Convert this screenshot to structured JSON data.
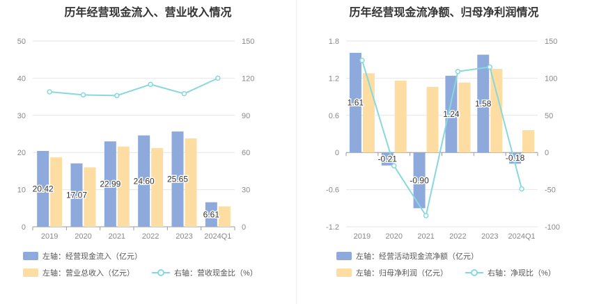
{
  "colors": {
    "blue": "#8eaadc",
    "orange": "#fedda3",
    "cyan": "#87d8dd",
    "grid": "#e6e6e6",
    "axis": "#999999",
    "tick": "#888888"
  },
  "chart_data": [
    {
      "type": "bar",
      "title": "历年经营现金流入、营业收入情况",
      "categories": [
        "2019",
        "2020",
        "2021",
        "2022",
        "2023",
        "2024Q1"
      ],
      "left_axis": {
        "ylim": [
          0,
          50
        ],
        "ticks": [
          "0",
          "10",
          "20",
          "30",
          "40",
          "50"
        ]
      },
      "right_axis": {
        "ylim": [
          0,
          150
        ],
        "ticks": [
          "0",
          "30",
          "60",
          "90",
          "120",
          "150"
        ]
      },
      "series": [
        {
          "name": "左轴：经营现金流入（亿元）",
          "type": "bar",
          "axis": "left",
          "values": [
            20.42,
            17.07,
            22.99,
            24.6,
            25.65,
            6.61
          ],
          "labels": [
            "20.42",
            "17.07",
            "22.99",
            "24.60",
            "25.65",
            "6.61"
          ]
        },
        {
          "name": "左轴：营业总收入（亿元）",
          "type": "bar",
          "axis": "left",
          "values": [
            18.7,
            16.0,
            21.6,
            21.2,
            23.8,
            5.5
          ]
        },
        {
          "name": "右轴：营收现金比（%）",
          "type": "line",
          "axis": "right",
          "values": [
            109,
            106.5,
            106,
            115,
            107.5,
            120
          ]
        }
      ]
    },
    {
      "type": "bar",
      "title": "历年经营现金流净额、归母净利润情况",
      "categories": [
        "2019",
        "2020",
        "2021",
        "2022",
        "2023",
        "2024Q1"
      ],
      "left_axis": {
        "ylim": [
          -1.2,
          1.8
        ],
        "ticks": [
          "-1.2",
          "-0.6",
          "0",
          "0.6",
          "1.2",
          "1.8"
        ]
      },
      "right_axis": {
        "ylim": [
          -100,
          150
        ],
        "ticks": [
          "-100",
          "-50",
          "0",
          "50",
          "100",
          "150"
        ]
      },
      "series": [
        {
          "name": "左轴：经营活动现金流净额（亿元）",
          "type": "bar",
          "axis": "left",
          "values": [
            1.61,
            -0.21,
            -0.9,
            1.24,
            1.58,
            -0.18
          ],
          "labels": [
            "1.61",
            "-0.21",
            "-0.90",
            "1.24",
            "1.58",
            "-0.18"
          ]
        },
        {
          "name": "左轴：归母净利润（亿元）",
          "type": "bar",
          "axis": "left",
          "values": [
            1.28,
            1.16,
            1.06,
            1.13,
            1.35,
            0.36
          ]
        },
        {
          "name": "右轴：净现比（%）",
          "type": "line",
          "axis": "right",
          "values": [
            124,
            -18,
            -85,
            109,
            115,
            -49
          ]
        }
      ]
    }
  ]
}
